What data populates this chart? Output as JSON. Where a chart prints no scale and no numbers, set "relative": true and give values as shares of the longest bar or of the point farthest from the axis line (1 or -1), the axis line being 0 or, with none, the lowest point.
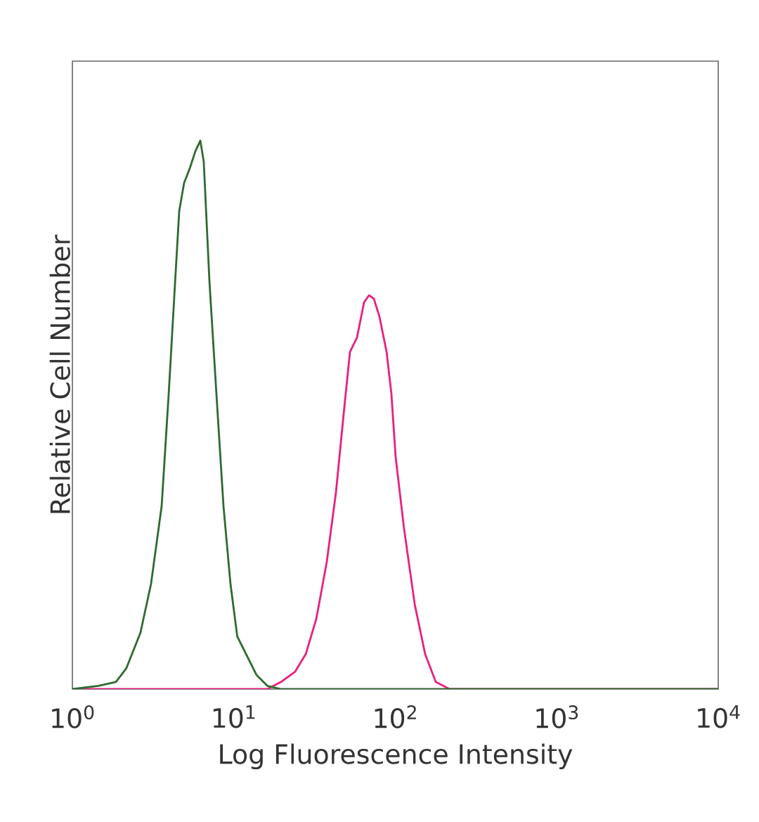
{
  "chart_data": {
    "type": "line",
    "xlabel": "Log Fluorescence Intensity",
    "ylabel": "Relative Cell Number",
    "log": "x",
    "relative": true,
    "tick_labels": "x",
    "legend": false,
    "marker": "none",
    "line_style": "solid",
    "xlim": [
      1,
      10000
    ],
    "xticks": [
      {
        "value": 1,
        "label": "10$^{0}$"
      },
      {
        "value": 10,
        "label": "10$^{1}$"
      },
      {
        "value": 100,
        "label": "10$^{2}$"
      },
      {
        "value": 1000,
        "label": "10$^{3}$"
      },
      {
        "value": 10000,
        "label": "10$^{4}$"
      }
    ],
    "series": [
      {
        "color": "#e8207e",
        "x": [
          1,
          16.1,
          19.6,
          24.0,
          27.9,
          32.4,
          37.6,
          42.9,
          48.3,
          52.4,
          57.9,
          64.0,
          68.7,
          73.6,
          79.8,
          88.3,
          94.6,
          100.5,
          113,
          132,
          153,
          178,
          217,
          10000
        ],
        "values": [
          0,
          0,
          0.013,
          0.032,
          0.064,
          0.128,
          0.231,
          0.359,
          0.513,
          0.615,
          0.641,
          0.705,
          0.718,
          0.712,
          0.679,
          0.615,
          0.538,
          0.423,
          0.295,
          0.154,
          0.064,
          0.013,
          0,
          0
        ]
      },
      {
        "color": "#2e6b30",
        "x": [
          1,
          1.45,
          1.86,
          2.16,
          2.64,
          3.07,
          3.57,
          3.95,
          4.28,
          4.59,
          4.92,
          5.33,
          5.78,
          6.2,
          6.51,
          7.06,
          7.8,
          8.63,
          9.53,
          10.5,
          11.9,
          13.8,
          16.1,
          19.6,
          10000
        ],
        "values": [
          0,
          0.006,
          0.013,
          0.038,
          0.103,
          0.192,
          0.333,
          0.538,
          0.718,
          0.872,
          0.923,
          0.949,
          0.981,
          1,
          0.962,
          0.744,
          0.538,
          0.333,
          0.192,
          0.096,
          0.064,
          0.026,
          0.006,
          0,
          0
        ]
      }
    ]
  }
}
